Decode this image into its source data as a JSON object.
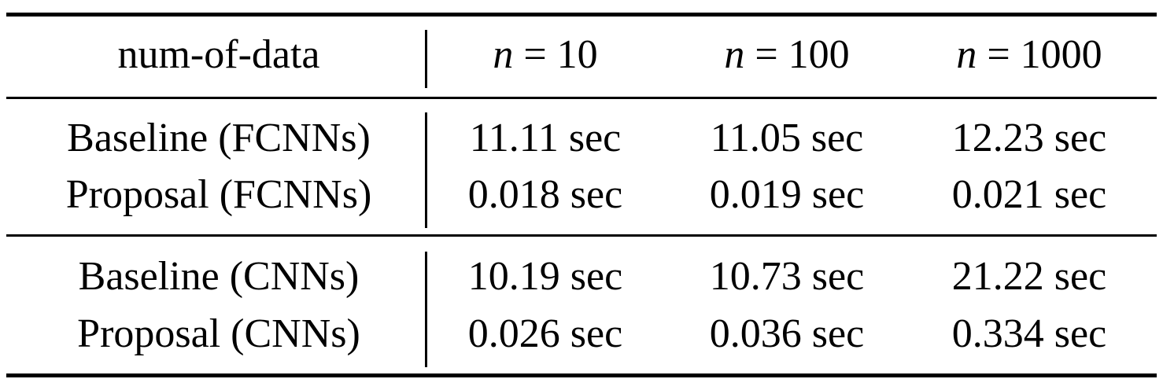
{
  "table": {
    "header": [
      "num-of-data",
      "n = 10",
      "n = 100",
      "n = 1000"
    ],
    "groups": [
      [
        [
          "Baseline (FCNNs)",
          "11.11 sec",
          "11.05 sec",
          "12.23 sec"
        ],
        [
          "Proposal (FCNNs)",
          "0.018 sec",
          "0.019 sec",
          "0.021 sec"
        ]
      ],
      [
        [
          "Baseline (CNNs)",
          "10.19 sec",
          "10.73 sec",
          "21.22 sec"
        ],
        [
          "Proposal (CNNs)",
          "0.026 sec",
          "0.036 sec",
          "0.334 sec"
        ]
      ]
    ]
  }
}
